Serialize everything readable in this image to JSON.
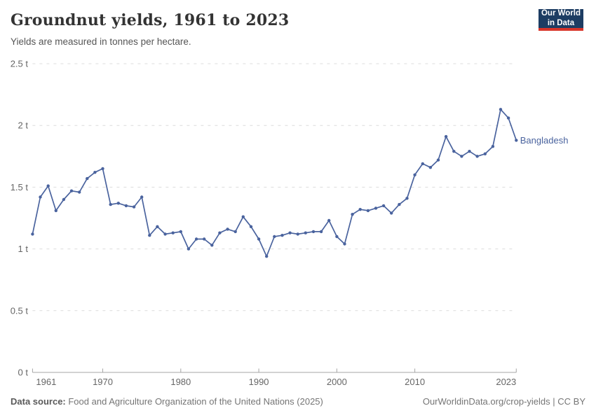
{
  "header": {
    "title": "Groundnut yields, 1961 to 2023",
    "subtitle": "Yields are measured in tonnes per hectare."
  },
  "logo": {
    "line1": "Our World",
    "line2": "in Data"
  },
  "colors": {
    "line": "#4a639e",
    "grid": "#dcdcdc",
    "axis": "#a5a5a5",
    "tick_label": "#666666",
    "logo_navy": "#1d3d63",
    "logo_red": "#d8352a"
  },
  "chart_data": {
    "type": "line",
    "title": "Groundnut yields, 1961 to 2023",
    "subtitle": "Yields are measured in tonnes per hectare.",
    "unit": "t",
    "series_name": "Bangladesh",
    "x": [
      1961,
      1962,
      1963,
      1964,
      1965,
      1966,
      1967,
      1968,
      1969,
      1970,
      1971,
      1972,
      1973,
      1974,
      1975,
      1976,
      1977,
      1978,
      1979,
      1980,
      1981,
      1982,
      1983,
      1984,
      1985,
      1986,
      1987,
      1988,
      1989,
      1990,
      1991,
      1992,
      1993,
      1994,
      1995,
      1996,
      1997,
      1998,
      1999,
      2000,
      2001,
      2002,
      2003,
      2004,
      2005,
      2006,
      2007,
      2008,
      2009,
      2010,
      2011,
      2012,
      2013,
      2014,
      2015,
      2016,
      2017,
      2018,
      2019,
      2020,
      2021,
      2022,
      2023
    ],
    "values": [
      1.12,
      1.42,
      1.51,
      1.31,
      1.4,
      1.47,
      1.46,
      1.57,
      1.62,
      1.65,
      1.36,
      1.37,
      1.35,
      1.34,
      1.42,
      1.11,
      1.18,
      1.12,
      1.13,
      1.14,
      1.0,
      1.08,
      1.08,
      1.03,
      1.13,
      1.16,
      1.14,
      1.26,
      1.18,
      1.08,
      0.94,
      1.1,
      1.11,
      1.13,
      1.12,
      1.13,
      1.14,
      1.14,
      1.23,
      1.1,
      1.04,
      1.28,
      1.32,
      1.31,
      1.33,
      1.35,
      1.29,
      1.36,
      1.41,
      1.6,
      1.69,
      1.66,
      1.72,
      1.91,
      1.79,
      1.75,
      1.79,
      1.75,
      1.77,
      1.83,
      2.13,
      2.06,
      1.88
    ],
    "ylim": [
      0,
      2.5
    ],
    "xlim": [
      1961,
      2023
    ],
    "yticks": [
      0,
      0.5,
      1,
      1.5,
      2,
      2.5
    ],
    "ytick_labels": [
      "0 t",
      "0.5 t",
      "1 t",
      "1.5 t",
      "2 t",
      "2.5 t"
    ],
    "xticks": [
      1961,
      1970,
      1980,
      1990,
      2000,
      2010,
      2023
    ],
    "xtick_labels": [
      "1961",
      "1970",
      "1980",
      "1990",
      "2000",
      "2010",
      "2023"
    ],
    "grid": "dashed-horizontal",
    "legend_position": "end-of-line-label",
    "end_label": "Bangladesh"
  },
  "footer": {
    "source_label": "Data source:",
    "source_text": " Food and Agriculture Organization of the United Nations (2025)",
    "right_text": "OurWorldinData.org/crop-yields | CC BY"
  }
}
